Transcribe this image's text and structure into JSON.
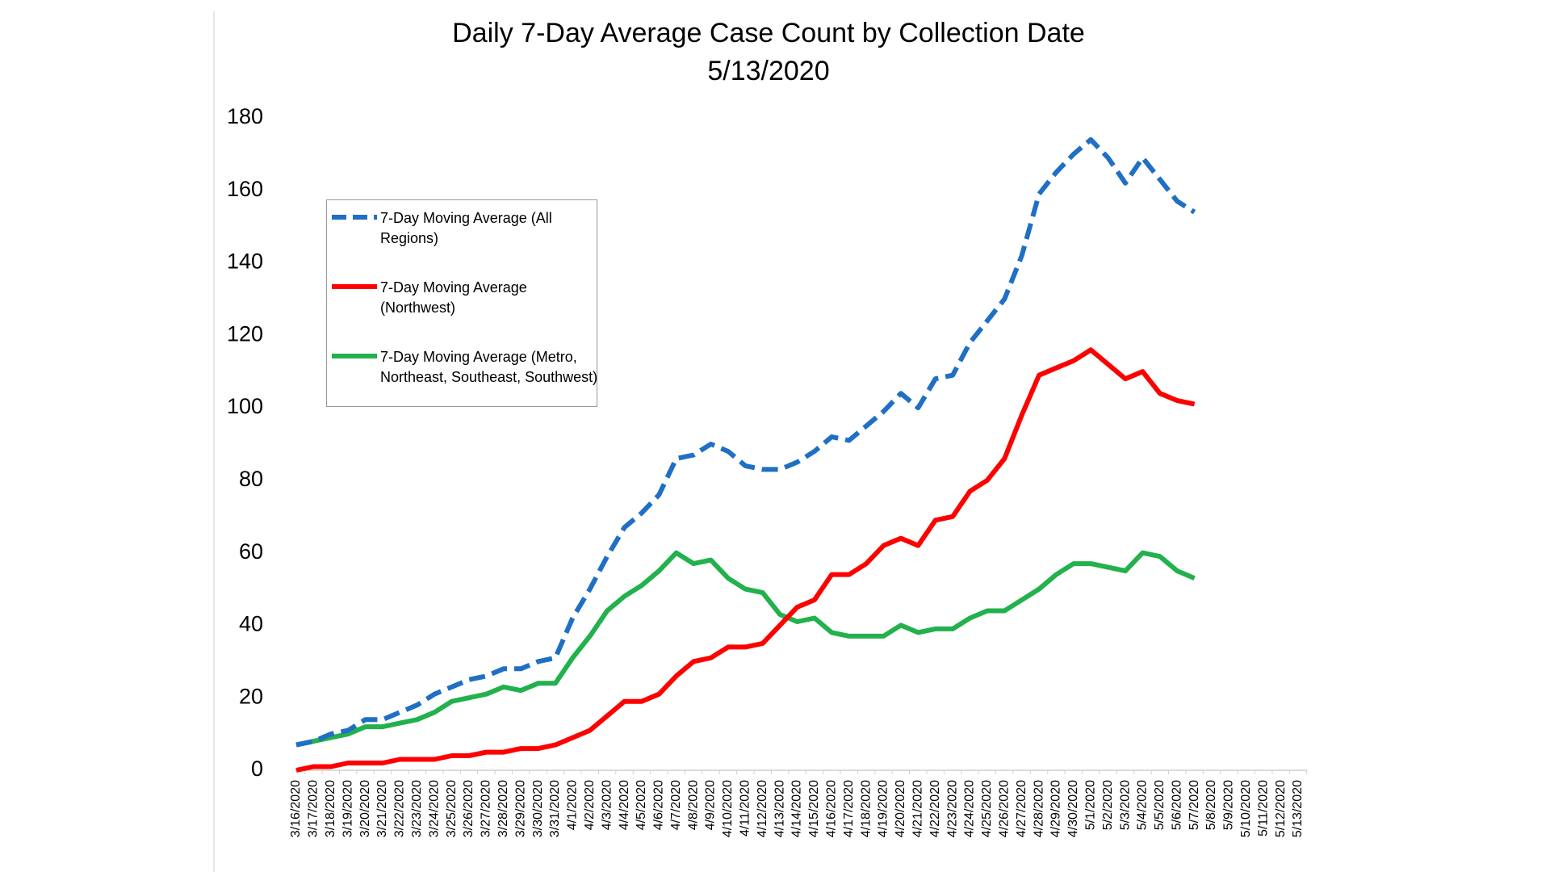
{
  "chart_data": {
    "type": "line",
    "title": "Daily 7-Day Average Case Count by Collection Date",
    "subtitle": "5/13/2020",
    "categories": [
      "3/16/2020",
      "3/17/2020",
      "3/18/2020",
      "3/19/2020",
      "3/20/2020",
      "3/21/2020",
      "3/22/2020",
      "3/23/2020",
      "3/24/2020",
      "3/25/2020",
      "3/26/2020",
      "3/27/2020",
      "3/28/2020",
      "3/29/2020",
      "3/30/2020",
      "3/31/2020",
      "4/1/2020",
      "4/2/2020",
      "4/3/2020",
      "4/4/2020",
      "4/5/2020",
      "4/6/2020",
      "4/7/2020",
      "4/8/2020",
      "4/9/2020",
      "4/10/2020",
      "4/11/2020",
      "4/12/2020",
      "4/13/2020",
      "4/14/2020",
      "4/15/2020",
      "4/16/2020",
      "4/17/2020",
      "4/18/2020",
      "4/19/2020",
      "4/20/2020",
      "4/21/2020",
      "4/22/2020",
      "4/23/2020",
      "4/24/2020",
      "4/25/2020",
      "4/26/2020",
      "4/27/2020",
      "4/28/2020",
      "4/29/2020",
      "4/30/2020",
      "5/1/2020",
      "5/2/2020",
      "5/3/2020",
      "5/4/2020",
      "5/5/2020",
      "5/6/2020",
      "5/7/2020",
      "5/8/2020",
      "5/9/2020",
      "5/10/2020",
      "5/11/2020",
      "5/12/2020",
      "5/13/2020"
    ],
    "series": [
      {
        "name": "7-Day Moving Average (All Regions)",
        "color": "#1f6fc5",
        "dashed": true,
        "values": [
          7,
          8,
          10,
          11,
          14,
          14,
          16,
          18,
          21,
          23,
          25,
          26,
          28,
          28,
          30,
          31,
          42,
          50,
          59,
          67,
          71,
          76,
          86,
          87,
          90,
          88,
          84,
          83,
          83,
          85,
          88,
          92,
          91,
          95,
          99,
          104,
          100,
          108,
          109,
          118,
          124,
          130,
          142,
          159,
          165,
          170,
          174,
          169,
          162,
          169,
          163,
          157,
          154,
          null,
          null,
          null,
          null,
          null,
          null
        ]
      },
      {
        "name": "7-Day Moving Average (Northwest)",
        "color": "#ff0000",
        "dashed": false,
        "values": [
          0,
          1,
          1,
          2,
          2,
          2,
          3,
          3,
          3,
          4,
          4,
          5,
          5,
          6,
          6,
          7,
          9,
          11,
          15,
          19,
          19,
          21,
          26,
          30,
          31,
          34,
          34,
          35,
          40,
          45,
          47,
          54,
          54,
          57,
          62,
          64,
          62,
          69,
          70,
          77,
          80,
          86,
          98,
          109,
          111,
          113,
          116,
          112,
          108,
          110,
          104,
          102,
          101,
          null,
          null,
          null,
          null,
          null,
          null
        ]
      },
      {
        "name": "7-Day Moving Average (Metro, Northeast, Southeast, Southwest)",
        "color": "#22b14c",
        "dashed": false,
        "values": [
          7,
          8,
          9,
          10,
          12,
          12,
          13,
          14,
          16,
          19,
          20,
          21,
          23,
          22,
          24,
          24,
          31,
          37,
          44,
          48,
          51,
          55,
          60,
          57,
          58,
          53,
          50,
          49,
          43,
          41,
          42,
          38,
          37,
          37,
          37,
          40,
          38,
          39,
          39,
          42,
          44,
          44,
          47,
          50,
          54,
          57,
          57,
          56,
          55,
          60,
          59,
          55,
          53,
          null,
          null,
          null,
          null,
          null,
          null
        ]
      }
    ],
    "ylim": [
      0,
      180
    ],
    "yticks": [
      0,
      20,
      40,
      60,
      80,
      100,
      120,
      140,
      160,
      180
    ],
    "grid": false,
    "legend": "upper left"
  }
}
